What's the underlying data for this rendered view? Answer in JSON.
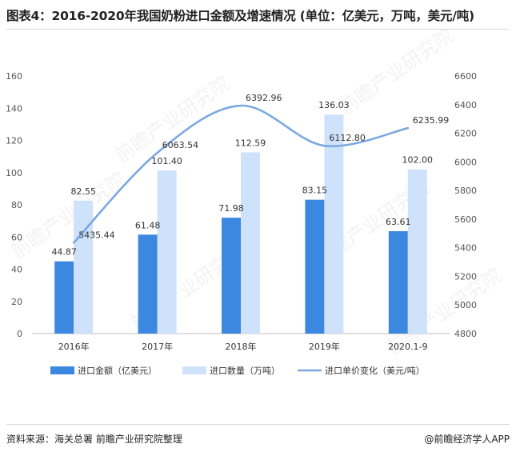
{
  "header": {
    "title": "图表4：2016-2020年我国奶粉进口金额及增速情况 (单位：亿美元，万吨，美元/吨)"
  },
  "footer": {
    "source": "资料来源：海关总署 前瞻产业研究院整理",
    "brand": "@前瞻经济学人APP"
  },
  "watermark": {
    "text": "前瞻产业研究院"
  },
  "colors": {
    "amount": "#3c87e0",
    "volume": "#cfe2fb",
    "price": "#7aa8e0"
  },
  "chart_data": {
    "type": "bar",
    "categories": [
      "2016年",
      "2017年",
      "2018年",
      "2019年",
      "2020.1-9"
    ],
    "series": [
      {
        "name": "进口金额（亿美元）",
        "kind": "bar",
        "axis": "left",
        "values": [
          44.87,
          61.48,
          71.98,
          83.15,
          63.61
        ],
        "labels": [
          "44.87",
          "61.48",
          "71.98",
          "83.15",
          "63.61"
        ]
      },
      {
        "name": "进口数量（万吨）",
        "kind": "bar",
        "axis": "left",
        "values": [
          82.55,
          101.4,
          112.59,
          136.03,
          102.0
        ],
        "labels": [
          "82.55",
          "101.40",
          "112.59",
          "136.03",
          "102.00"
        ]
      },
      {
        "name": "进口单价变化（美元/吨）",
        "kind": "line",
        "axis": "right",
        "values": [
          5435.44,
          6063.54,
          6392.96,
          6112.8,
          6235.99
        ],
        "labels": [
          "5435.44",
          "6063.54",
          "6392.96",
          "6112.80",
          "6235.99"
        ]
      }
    ],
    "y_left": {
      "range": [
        0,
        160
      ],
      "ticks": [
        "0",
        "20",
        "40",
        "60",
        "80",
        "100",
        "120",
        "140",
        "160"
      ]
    },
    "y_right": {
      "range": [
        4800,
        6600
      ],
      "ticks": [
        "4800",
        "5000",
        "5200",
        "5400",
        "5600",
        "5800",
        "6000",
        "6200",
        "6400",
        "6600"
      ]
    },
    "grid": false,
    "legend_position": "bottom"
  }
}
